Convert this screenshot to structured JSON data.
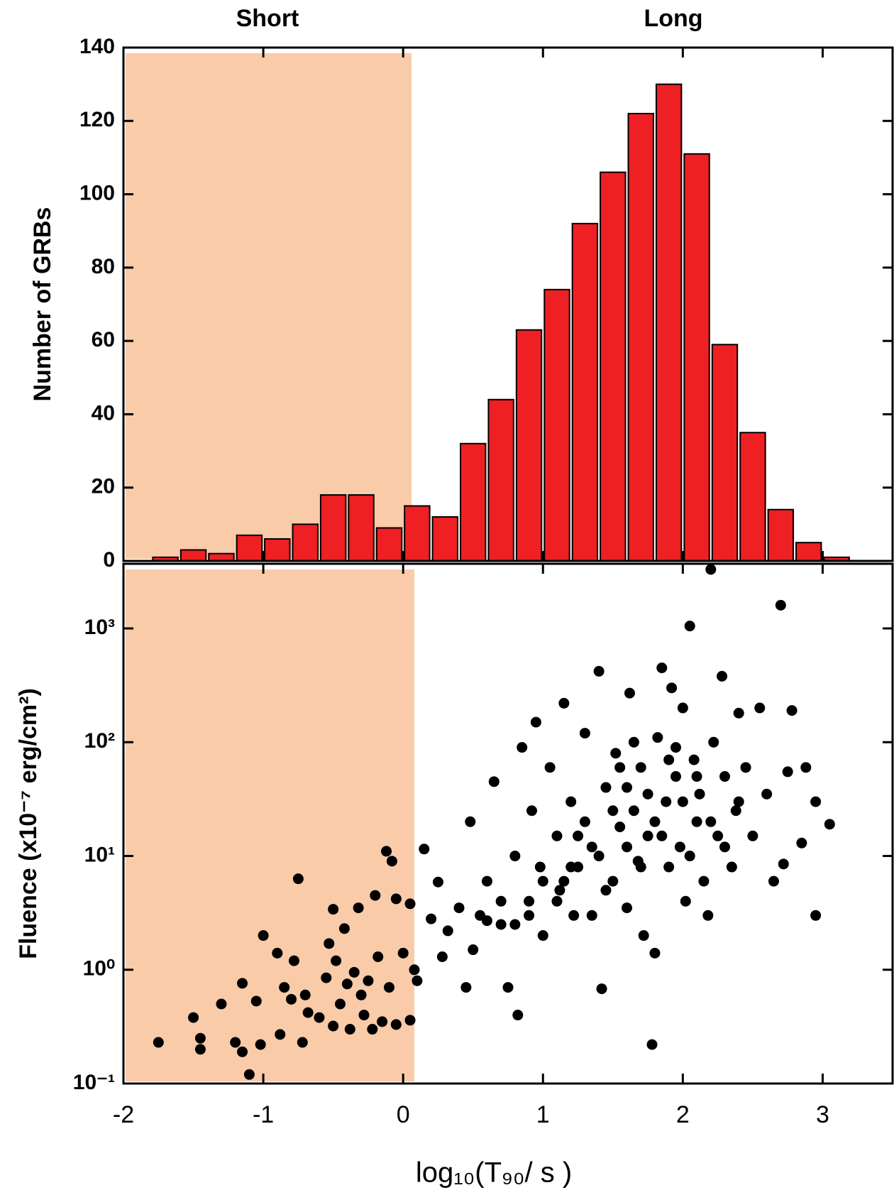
{
  "chart_data": [
    {
      "type": "histogram",
      "ylabel": "Number of GRBs",
      "annotations": [
        "Short",
        "Long"
      ],
      "bins": [
        -1.8,
        -1.6,
        -1.4,
        -1.2,
        -1.0,
        -0.8,
        -0.6,
        -0.4,
        -0.2,
        0.0,
        0.2,
        0.4,
        0.6,
        0.8,
        1.0,
        1.2,
        1.4,
        1.6,
        1.8,
        2.0,
        2.2,
        2.4,
        2.6,
        2.8,
        3.0,
        3.2
      ],
      "values": [
        1,
        3,
        2,
        7,
        6,
        10,
        18,
        18,
        9,
        15,
        12,
        32,
        44,
        63,
        74,
        92,
        106,
        122,
        130,
        111,
        59,
        35,
        14,
        5,
        1
      ],
      "color": "#ee2024",
      "edgecolor": "#000000",
      "xlim": [
        -2,
        3.5
      ],
      "xticks": [
        -2,
        -1,
        0,
        1,
        2,
        3
      ],
      "xticklabels": false,
      "ylim": [
        0,
        140
      ],
      "yticks": [
        0,
        20,
        40,
        60,
        80,
        100,
        120,
        140
      ],
      "shade": {
        "xlim": [
          -2,
          0.06
        ],
        "color": "#f9cba8"
      }
    },
    {
      "type": "scatter",
      "ylabel": "Fluence (x10⁻⁷ erg/cm²)",
      "xlabel": "log₁₀(T₉₀/ s )",
      "yscale": "log",
      "color": "#000000",
      "xlim": [
        -2,
        3.5
      ],
      "xticks": [
        -2,
        -1,
        0,
        1,
        2,
        3
      ],
      "xticklabels": true,
      "ylim": [
        0.1,
        3700
      ],
      "yticks": [
        {
          "value": 0.1,
          "label": "10⁻¹"
        },
        {
          "value": 1,
          "label": "10⁰"
        },
        {
          "value": 10,
          "label": "10¹"
        },
        {
          "value": 100,
          "label": "10²"
        },
        {
          "value": 1000,
          "label": "10³"
        }
      ],
      "shade": {
        "xlim": [
          -2,
          0.08
        ],
        "color": "#f9cba8"
      },
      "x": [
        -1.75,
        -1.5,
        -1.45,
        -1.45,
        -1.3,
        -1.2,
        -1.15,
        -1.15,
        -1.1,
        -1.05,
        -1.02,
        -1.0,
        -0.9,
        -0.88,
        -0.85,
        -0.8,
        -0.78,
        -0.75,
        -0.72,
        -0.7,
        -0.68,
        -0.6,
        -0.55,
        -0.53,
        -0.5,
        -0.5,
        -0.48,
        -0.45,
        -0.42,
        -0.4,
        -0.38,
        -0.35,
        -0.32,
        -0.3,
        -0.28,
        -0.25,
        -0.22,
        -0.2,
        -0.18,
        -0.15,
        -0.12,
        -0.1,
        -0.08,
        -0.05,
        -0.05,
        0.0,
        0.05,
        0.05,
        0.08,
        0.1,
        0.15,
        0.2,
        0.25,
        0.28,
        0.32,
        0.4,
        0.45,
        0.48,
        0.5,
        0.55,
        0.6,
        0.65,
        0.7,
        0.75,
        0.8,
        0.82,
        0.85,
        0.9,
        0.92,
        0.95,
        0.98,
        1.0,
        1.05,
        1.1,
        1.12,
        1.15,
        1.2,
        1.22,
        1.25,
        1.3,
        1.35,
        1.4,
        1.42,
        1.45,
        1.5,
        1.52,
        1.55,
        1.6,
        1.62,
        1.65,
        1.68,
        1.7,
        1.72,
        1.75,
        1.78,
        1.8,
        1.82,
        1.85,
        1.88,
        1.9,
        1.92,
        1.95,
        1.98,
        2.0,
        2.02,
        2.05,
        2.08,
        2.1,
        2.12,
        2.15,
        2.18,
        2.2,
        2.22,
        2.25,
        2.28,
        2.3,
        2.35,
        2.38,
        2.4,
        2.45,
        2.5,
        2.55,
        2.6,
        2.65,
        2.7,
        2.72,
        2.75,
        2.78,
        2.85,
        2.88,
        2.95,
        2.95,
        3.05,
        1.3,
        1.4,
        1.5,
        1.6,
        1.7,
        1.8,
        1.9,
        2.0,
        2.1,
        2.2,
        1.2,
        1.1,
        1.0,
        0.9,
        0.8,
        1.6,
        1.75,
        1.85,
        1.95,
        2.05,
        1.45,
        1.55,
        1.65,
        2.3,
        2.4,
        1.35,
        1.25,
        1.15,
        0.7,
        0.6
      ],
      "y": [
        0.23,
        0.38,
        0.25,
        0.2,
        0.5,
        0.23,
        0.76,
        0.19,
        0.12,
        0.53,
        0.22,
        2.0,
        1.4,
        0.27,
        0.7,
        0.55,
        1.2,
        6.3,
        0.23,
        0.6,
        0.42,
        0.38,
        0.85,
        1.7,
        3.4,
        0.32,
        1.2,
        0.5,
        2.3,
        0.75,
        0.3,
        0.95,
        3.5,
        0.6,
        0.4,
        0.8,
        0.3,
        4.5,
        1.3,
        0.35,
        11,
        0.7,
        9,
        4.2,
        0.33,
        1.4,
        3.8,
        0.36,
        1.0,
        0.8,
        11.5,
        2.8,
        5.9,
        1.3,
        2.2,
        3.5,
        0.7,
        20,
        1.5,
        3,
        6,
        45,
        2.5,
        0.7,
        10,
        0.4,
        90,
        4,
        25,
        150,
        8,
        2,
        60,
        15,
        5,
        220,
        30,
        3,
        8,
        120,
        12,
        420,
        0.68,
        40,
        6,
        80,
        18,
        3.5,
        270,
        25,
        9,
        60,
        2,
        15,
        0.22,
        1.4,
        110,
        450,
        30,
        8,
        300,
        50,
        12,
        200,
        4,
        1050,
        70,
        20,
        35,
        6,
        3,
        3300,
        100,
        15,
        380,
        50,
        8,
        25,
        180,
        60,
        15,
        200,
        35,
        6,
        1600,
        8.5,
        55,
        190,
        13,
        60,
        3,
        30,
        19,
        20,
        10,
        25,
        40,
        8,
        20,
        70,
        30,
        50,
        20,
        8,
        4,
        6,
        3,
        2.5,
        12,
        35,
        15,
        90,
        10,
        5,
        60,
        100,
        12,
        30,
        3,
        15,
        6,
        4,
        2.7
      ]
    }
  ]
}
